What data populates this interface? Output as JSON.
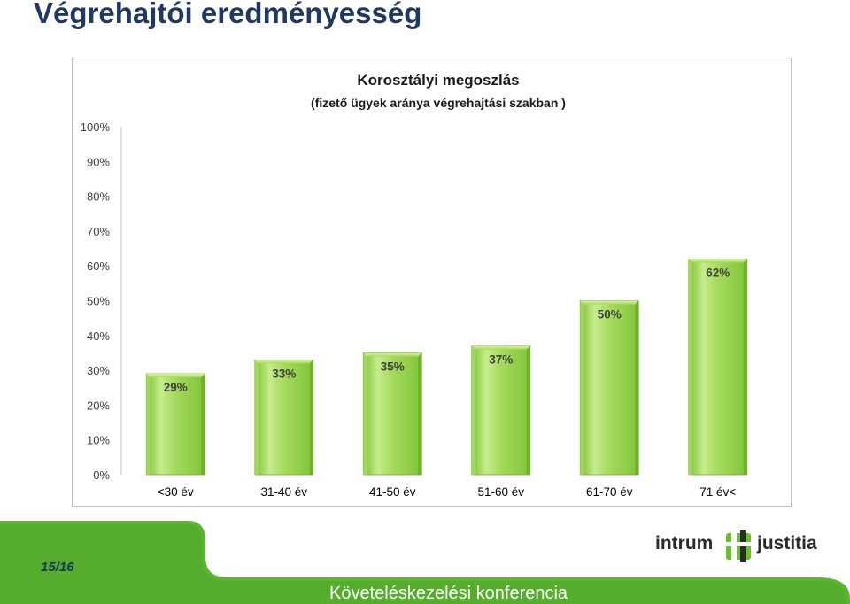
{
  "slide": {
    "title": "Végrehajtói eredményesség",
    "page_number": "15/16",
    "conference": "Követeléskezelési konferencia"
  },
  "logo": {
    "word_left": "intrum",
    "word_right": "justitia",
    "icon": "intrum-justitia-emblem-icon",
    "color_text": "#2b2b2b",
    "color_accent": "#6abf2e"
  },
  "colors": {
    "title": "#1f3864",
    "bar_fill": "#92d050",
    "bar_light": "#c6ec8c",
    "bar_dark": "#76b82a",
    "footer_green": "#5cb531"
  },
  "chart_data": {
    "type": "bar",
    "title": "Korosztályi megoszlás",
    "subtitle": "(fizető ügyek aránya végrehajtási szakban )",
    "categories": [
      "<30 év",
      "31-40 év",
      "41-50 év",
      "51-60 év",
      "61-70 év",
      "71 év<"
    ],
    "values": [
      29,
      33,
      35,
      37,
      50,
      62
    ],
    "data_labels": [
      "29%",
      "33%",
      "35%",
      "37%",
      "50%",
      "62%"
    ],
    "ylim": [
      0,
      100
    ],
    "yticks": [
      "0%",
      "10%",
      "20%",
      "30%",
      "40%",
      "50%",
      "60%",
      "70%",
      "80%",
      "90%",
      "100%"
    ],
    "xlabel": "",
    "ylabel": "",
    "grid": false,
    "legend": "none"
  }
}
